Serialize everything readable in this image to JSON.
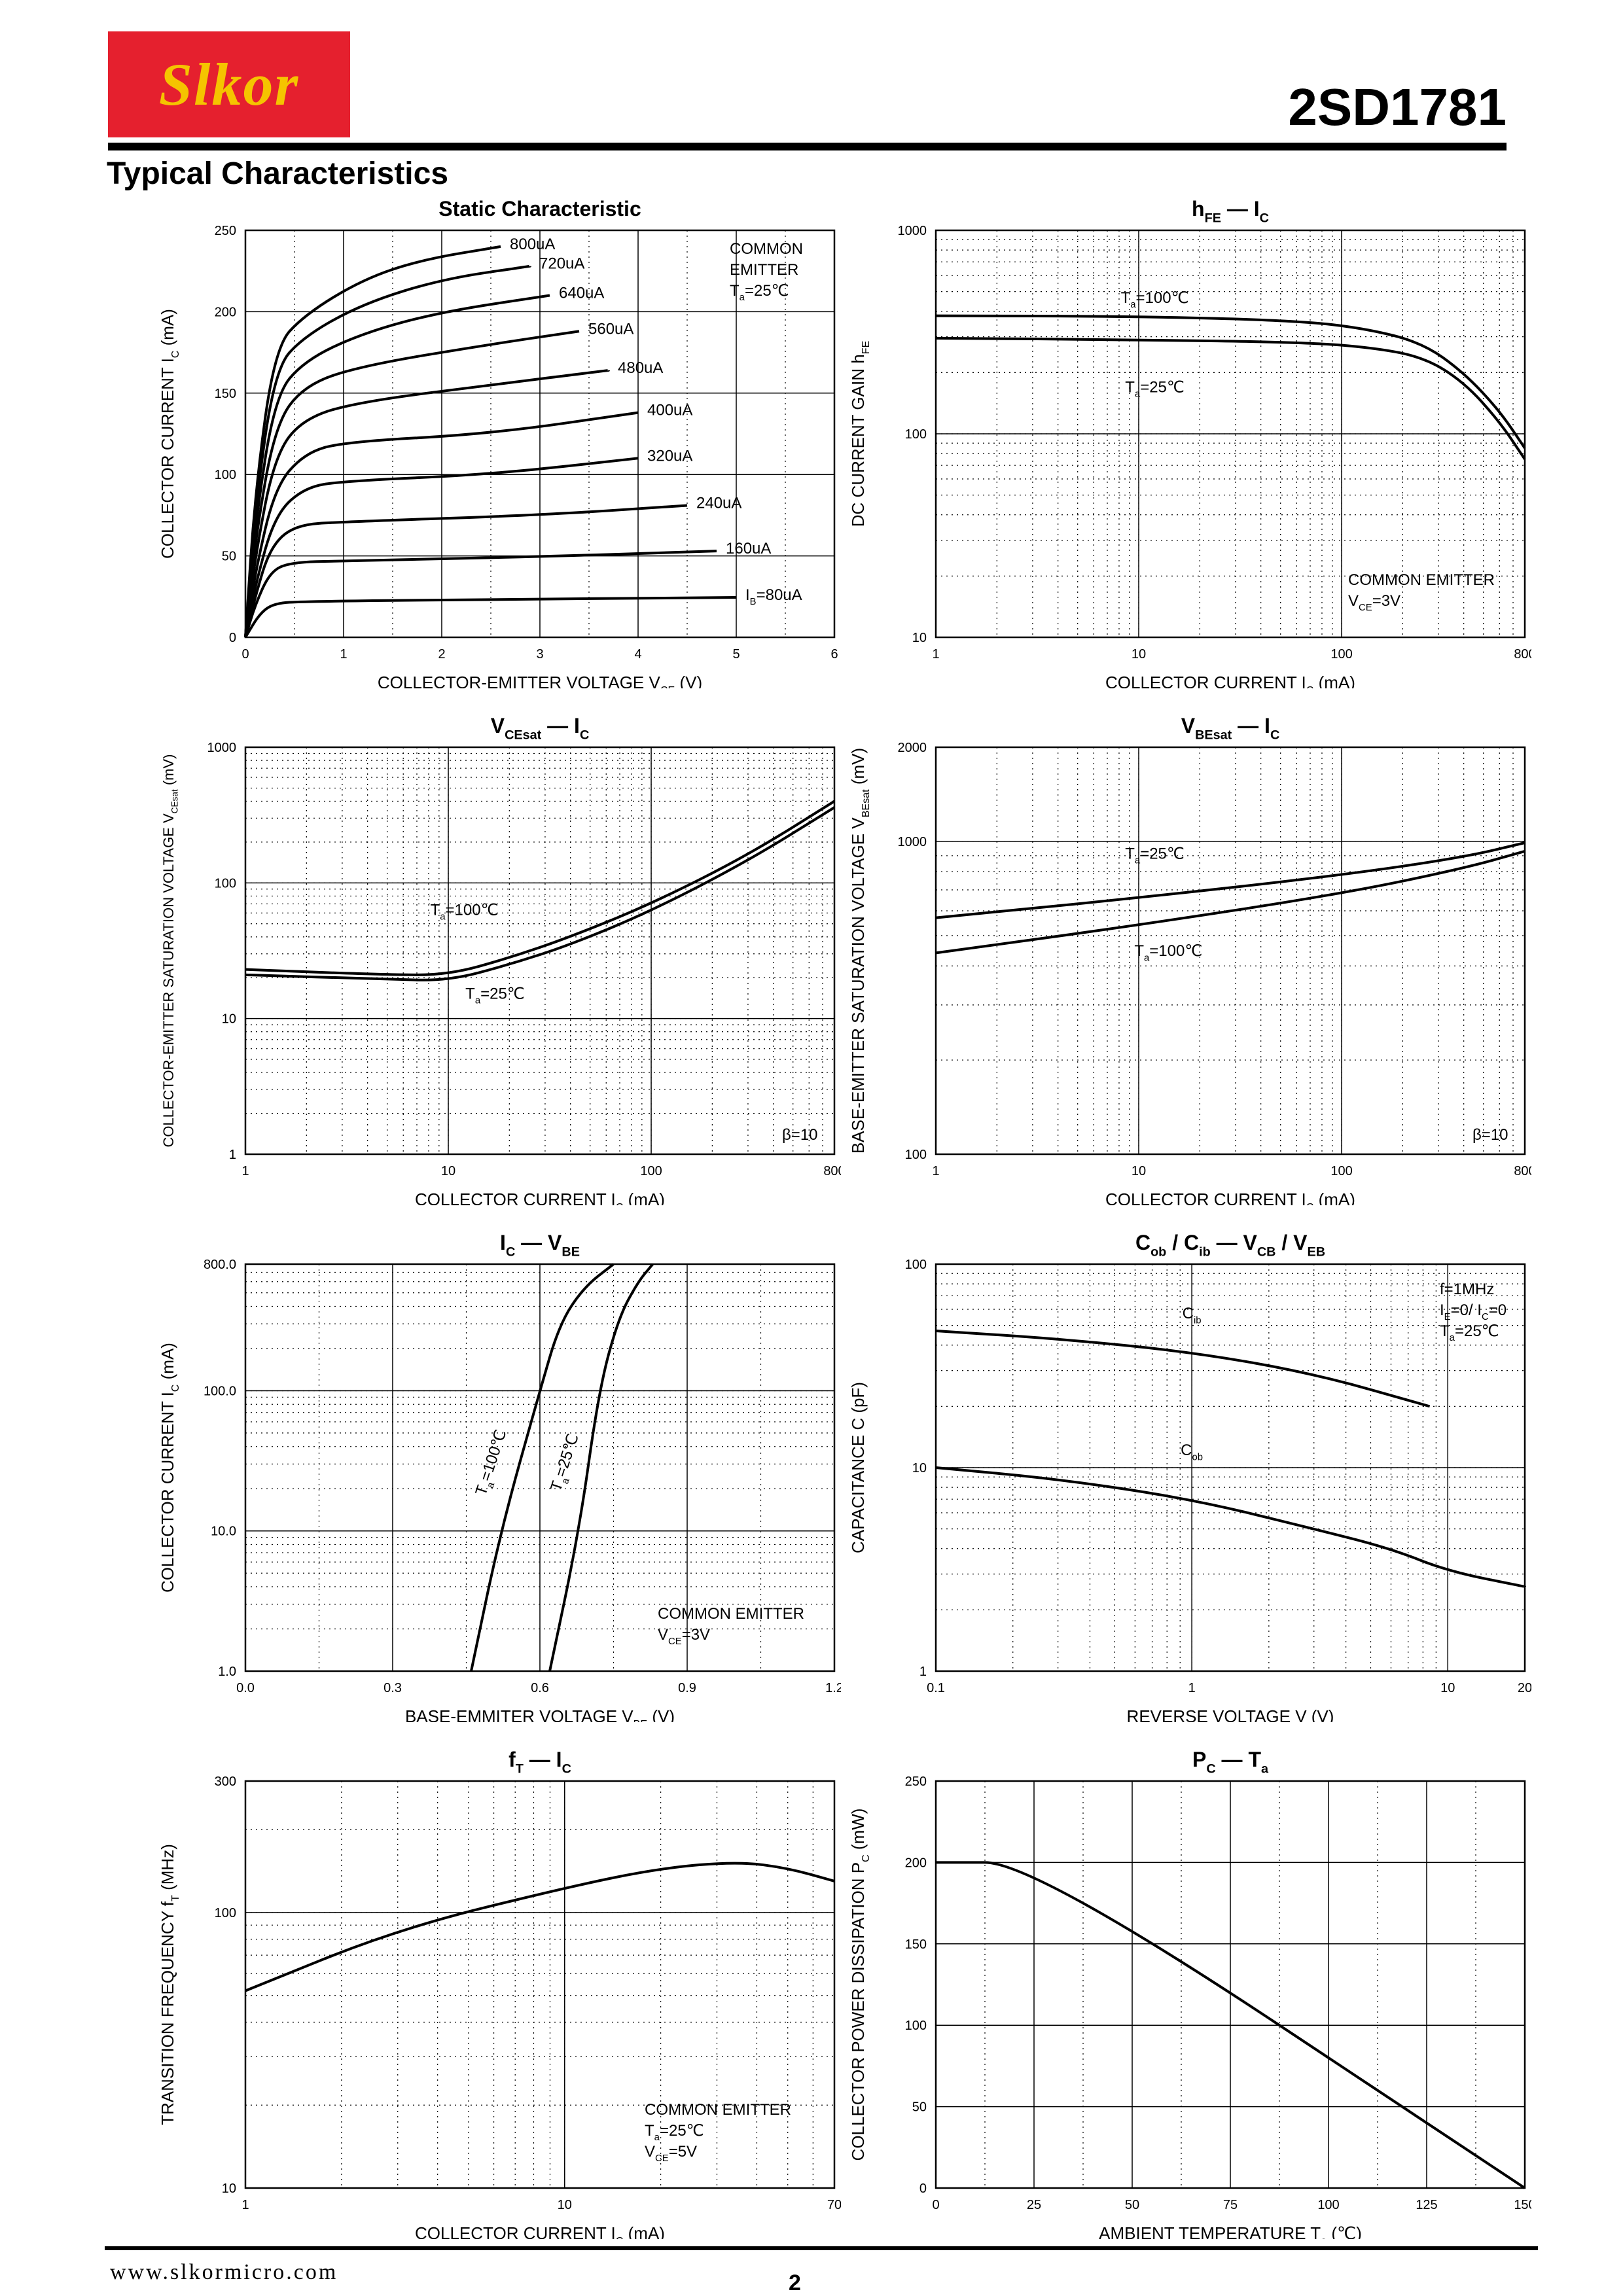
{
  "header": {
    "logo_text": "Slkor",
    "part_number": "2SD1781",
    "section_title": "Typical Characteristics"
  },
  "footer": {
    "url": "www.slkormicro.com",
    "page": "2"
  },
  "colors": {
    "logo_bg": "#e5202e",
    "logo_text": "#f5c400"
  },
  "chart_data": [
    {
      "id": "static",
      "type": "line",
      "title": "Static Characteristic",
      "xlabel": "COLLECTOR-EMITTER VOLTAGE   V_CE  (V)",
      "ylabel": "COLLECTOR CURRENT   I_C  (mA)",
      "xscale": "linear",
      "yscale": "linear",
      "xlim": [
        0,
        6
      ],
      "ylim": [
        0,
        250
      ],
      "xticks": [
        0,
        1,
        2,
        3,
        4,
        5,
        6
      ],
      "yticks": [
        0,
        50,
        100,
        150,
        200,
        250
      ],
      "annotations": [
        "COMMON",
        "EMITTER",
        "T_a=25℃"
      ],
      "series": [
        {
          "name": "I_B=80uA",
          "points": [
            [
              0,
              0
            ],
            [
              0.15,
              15
            ],
            [
              0.3,
              21
            ],
            [
              0.6,
              22
            ],
            [
              2,
              23
            ],
            [
              5,
              24.5
            ]
          ]
        },
        {
          "name": "160uA",
          "points": [
            [
              0,
              0
            ],
            [
              0.1,
              20
            ],
            [
              0.25,
              40
            ],
            [
              0.45,
              46
            ],
            [
              1,
              47
            ],
            [
              3,
              49.5
            ],
            [
              4.8,
              53
            ]
          ]
        },
        {
          "name": "240uA",
          "points": [
            [
              0,
              0
            ],
            [
              0.1,
              25
            ],
            [
              0.25,
              55
            ],
            [
              0.5,
              69
            ],
            [
              1,
              71
            ],
            [
              3,
              75
            ],
            [
              4.5,
              81
            ]
          ]
        },
        {
          "name": "320uA",
          "points": [
            [
              0,
              0
            ],
            [
              0.1,
              32
            ],
            [
              0.3,
              75
            ],
            [
              0.6,
              92
            ],
            [
              1,
              96
            ],
            [
              2.5,
              100
            ],
            [
              4,
              110
            ]
          ]
        },
        {
          "name": "400uA",
          "points": [
            [
              0,
              0
            ],
            [
              0.1,
              40
            ],
            [
              0.3,
              92
            ],
            [
              0.6,
              113
            ],
            [
              1,
              120
            ],
            [
              2.5,
              125
            ],
            [
              4,
              138
            ]
          ]
        },
        {
          "name": "480uA",
          "points": [
            [
              0,
              0
            ],
            [
              0.1,
              50
            ],
            [
              0.3,
              112
            ],
            [
              0.6,
              135
            ],
            [
              1.2,
              145
            ],
            [
              2.5,
              155
            ],
            [
              3.7,
              164
            ]
          ]
        },
        {
          "name": "560uA",
          "points": [
            [
              0,
              0
            ],
            [
              0.1,
              60
            ],
            [
              0.3,
              130
            ],
            [
              0.6,
              155
            ],
            [
              1.2,
              167
            ],
            [
              2.5,
              180
            ],
            [
              3.4,
              188
            ]
          ]
        },
        {
          "name": "640uA",
          "points": [
            [
              0,
              0
            ],
            [
              0.1,
              70
            ],
            [
              0.3,
              148
            ],
            [
              0.6,
              170
            ],
            [
              1.2,
              187
            ],
            [
              2,
              200
            ],
            [
              3.1,
              210
            ]
          ]
        },
        {
          "name": "720uA",
          "points": [
            [
              0,
              0
            ],
            [
              0.1,
              80
            ],
            [
              0.3,
              165
            ],
            [
              0.6,
              185
            ],
            [
              1.2,
              205
            ],
            [
              2,
              220
            ],
            [
              2.9,
              228
            ]
          ]
        },
        {
          "name": "800uA",
          "points": [
            [
              0,
              0
            ],
            [
              0.1,
              90
            ],
            [
              0.3,
              178
            ],
            [
              0.6,
              198
            ],
            [
              1.2,
              220
            ],
            [
              1.8,
              232
            ],
            [
              2.6,
              240
            ]
          ]
        }
      ]
    },
    {
      "id": "hfe",
      "type": "line",
      "title": "h_FE — I_C",
      "xlabel": "COLLECTOR CURRENT   I_C  (mA)",
      "ylabel": "DC CURRENT GAIN   h_FE",
      "xscale": "log",
      "yscale": "log",
      "xlim": [
        1,
        800
      ],
      "ylim": [
        10,
        1000
      ],
      "xticks": [
        1,
        10,
        100,
        800
      ],
      "yticks": [
        10,
        100,
        1000
      ],
      "annotations": [
        "T_a=100℃",
        "T_a=25℃",
        "COMMON EMITTER",
        "V_CE=3V"
      ],
      "series": [
        {
          "name": "T_a=100℃",
          "points": [
            [
              1,
              380
            ],
            [
              10,
              378
            ],
            [
              60,
              360
            ],
            [
              130,
              330
            ],
            [
              250,
              280
            ],
            [
              400,
              200
            ],
            [
              600,
              130
            ],
            [
              800,
              85
            ]
          ]
        },
        {
          "name": "T_a=25℃",
          "points": [
            [
              1,
              295
            ],
            [
              10,
              290
            ],
            [
              60,
              282
            ],
            [
              130,
              268
            ],
            [
              250,
              240
            ],
            [
              400,
              180
            ],
            [
              600,
              115
            ],
            [
              800,
              75
            ]
          ]
        }
      ]
    },
    {
      "id": "vcesat",
      "type": "line",
      "title": "V_CEsat — I_C",
      "xlabel": "COLLECTOR CURRENT   I_C  (mA)",
      "ylabel": "COLLECTOR-EMITTER SATURATION VOLTAGE   V_CEsat  (mV)",
      "xscale": "log",
      "yscale": "log",
      "xlim": [
        1,
        800
      ],
      "ylim": [
        1,
        1000
      ],
      "xticks": [
        1,
        10,
        100,
        800
      ],
      "yticks": [
        1,
        10,
        100,
        1000
      ],
      "annotations": [
        "T_a=100℃",
        "T_a=25℃",
        "β=10"
      ],
      "series": [
        {
          "name": "T_a=100℃",
          "points": [
            [
              1,
              23
            ],
            [
              5,
              21
            ],
            [
              10,
              21
            ],
            [
              20,
              28
            ],
            [
              40,
              40
            ],
            [
              100,
              70
            ],
            [
              300,
              160
            ],
            [
              800,
              400
            ]
          ]
        },
        {
          "name": "T_a=25℃",
          "points": [
            [
              1,
              21
            ],
            [
              5,
              19.5
            ],
            [
              10,
              19
            ],
            [
              20,
              25
            ],
            [
              40,
              35
            ],
            [
              100,
              62
            ],
            [
              300,
              145
            ],
            [
              800,
              360
            ]
          ]
        }
      ]
    },
    {
      "id": "vbesat",
      "type": "line",
      "title": "V_BEsat — I_C",
      "xlabel": "COLLECTOR CURRENT   I_C  (mA)",
      "ylabel": "BASE-EMITTER SATURATION VOLTAGE   V_BEsat  (mV)",
      "xscale": "log",
      "yscale": "log",
      "xlim": [
        1,
        800
      ],
      "ylim": [
        100,
        2000
      ],
      "xticks": [
        1,
        10,
        100,
        800
      ],
      "yticks": [
        100,
        1000,
        2000
      ],
      "annotations": [
        "T_a=25℃",
        "T_a=100℃",
        "β=10"
      ],
      "series": [
        {
          "name": "T_a=25℃",
          "points": [
            [
              1,
              570
            ],
            [
              10,
              660
            ],
            [
              100,
              780
            ],
            [
              400,
              890
            ],
            [
              800,
              990
            ]
          ]
        },
        {
          "name": "T_a=100℃",
          "points": [
            [
              1,
              440
            ],
            [
              10,
              540
            ],
            [
              100,
              680
            ],
            [
              400,
              820
            ],
            [
              800,
              930
            ]
          ]
        }
      ]
    },
    {
      "id": "icvbe",
      "type": "line",
      "title": "I_C — V_BE",
      "xlabel": "BASE-EMMITER VOLTAGE   V_BE  (V)",
      "ylabel": "COLLECTOR CURRENT   I_C  (mA)",
      "xscale": "linear",
      "yscale": "log",
      "xlim": [
        0,
        1.2
      ],
      "ylim": [
        1,
        800
      ],
      "xticks": [
        0.0,
        0.3,
        0.6,
        0.9,
        1.2
      ],
      "yticks": [
        1,
        10,
        100,
        800
      ],
      "annotations": [
        "T_a=100℃",
        "T_a=25℃",
        "COMMON EMITTER",
        "V_CE=3V"
      ],
      "series": [
        {
          "name": "T_a=100℃",
          "points": [
            [
              0.46,
              1
            ],
            [
              0.52,
              10
            ],
            [
              0.6,
              100
            ],
            [
              0.64,
              300
            ],
            [
              0.69,
              550
            ],
            [
              0.75,
              800
            ]
          ]
        },
        {
          "name": "T_a=25℃",
          "points": [
            [
              0.62,
              1
            ],
            [
              0.68,
              10
            ],
            [
              0.72,
              100
            ],
            [
              0.76,
              330
            ],
            [
              0.8,
              600
            ],
            [
              0.83,
              800
            ]
          ]
        }
      ]
    },
    {
      "id": "cap",
      "type": "line",
      "title": "C_ob / C_ib — V_CB / V_EB",
      "xlabel": "REVERSE VOLTAGE   V  (V)",
      "ylabel": "CAPACITANCE   C  (pF)",
      "xscale": "log",
      "yscale": "log",
      "xlim": [
        0.1,
        20
      ],
      "ylim": [
        1,
        100
      ],
      "xticks": [
        0.1,
        1,
        10,
        20
      ],
      "yticks": [
        1,
        10,
        100
      ],
      "annotations": [
        "f=1MHz",
        "I_E=0/ I_C=0",
        "T_a=25℃",
        "C_ib",
        "C_ob"
      ],
      "series": [
        {
          "name": "C_ib",
          "points": [
            [
              0.1,
              47
            ],
            [
              0.3,
              43
            ],
            [
              1,
              37
            ],
            [
              3,
              29
            ],
            [
              8.5,
              20
            ]
          ]
        },
        {
          "name": "C_ob",
          "points": [
            [
              0.1,
              10
            ],
            [
              0.3,
              8.8
            ],
            [
              1,
              7
            ],
            [
              3,
              5
            ],
            [
              6,
              4
            ],
            [
              10,
              3.1
            ],
            [
              20,
              2.6
            ]
          ]
        }
      ]
    },
    {
      "id": "ft",
      "type": "line",
      "title": "f_T — I_C",
      "xlabel": "COLLECTOR CURRENT   I_C  (mA)",
      "ylabel": "TRANSITION FREQUENCY   f_T  (MHz)",
      "xscale": "log",
      "yscale": "log",
      "xlim": [
        1,
        70
      ],
      "ylim": [
        10,
        300
      ],
      "xticks": [
        1,
        10,
        70
      ],
      "yticks": [
        10,
        100,
        300
      ],
      "annotations": [
        "COMMON EMITTER",
        "T_a=25℃",
        "V_CE=5V"
      ],
      "series": [
        {
          "name": "",
          "points": [
            [
              1,
              52
            ],
            [
              3,
              87
            ],
            [
              10,
              123
            ],
            [
              20,
              145
            ],
            [
              35,
              153
            ],
            [
              50,
              145
            ],
            [
              70,
              130
            ]
          ]
        }
      ]
    },
    {
      "id": "pc",
      "type": "line",
      "title": "P_C — T_a",
      "xlabel": "AMBIENT TEMPERATURE   T_a  (℃)",
      "ylabel": "COLLECTOR POWER DISSIPATION   P_C  (mW)",
      "xscale": "linear",
      "yscale": "linear",
      "xlim": [
        0,
        150
      ],
      "ylim": [
        0,
        250
      ],
      "xticks": [
        0,
        25,
        50,
        75,
        100,
        125,
        150
      ],
      "yticks": [
        0,
        50,
        100,
        150,
        200,
        250
      ],
      "annotations": [],
      "series": [
        {
          "name": "",
          "points": [
            [
              0,
              200
            ],
            [
              25,
              200
            ],
            [
              150,
              0
            ]
          ]
        }
      ]
    }
  ]
}
